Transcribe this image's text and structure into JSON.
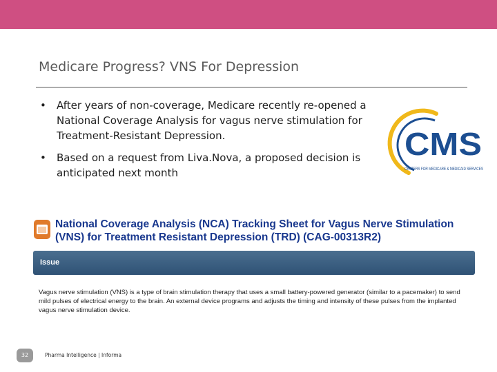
{
  "slide": {
    "title": "Medicare Progress? VNS For Depression",
    "bullets": [
      "After years of non-coverage, Medicare recently re-opened a National Coverage Analysis for vagus nerve stimulation for Treatment-Resistant Depression.",
      "Based on a request from Liva.Nova, a proposed decision is anticipated next month"
    ],
    "bullet_glyph": "•"
  },
  "cms_logo": {
    "wordmark": "CMS",
    "tagline": "CENTERS FOR MEDICARE & MEDICAID SERVICES",
    "colors": {
      "blue": "#1c4e91",
      "gold": "#f0b81a"
    }
  },
  "nca": {
    "title": "National Coverage Analysis (NCA) Tracking Sheet for Vagus Nerve Stimulation (VNS) for Treatment Resistant Depression (TRD) (CAG-00313R2)",
    "issue_label": "Issue",
    "issue_text": "Vagus nerve stimulation (VNS) is a type of brain stimulation therapy that uses a small battery-powered generator (similar to a pacemaker) to send mild pulses of electrical energy to the brain. An external device programs and adjusts the timing and intensity of these pulses from the implanted vagus nerve stimulation device.",
    "icon": "folder-icon"
  },
  "footer": {
    "page_number": "32",
    "text": "Pharma Intelligence | Informa"
  },
  "colors": {
    "top_bar": "#cf4f82",
    "nca_title": "#19388e",
    "issue_bar": "#3a5e80"
  }
}
